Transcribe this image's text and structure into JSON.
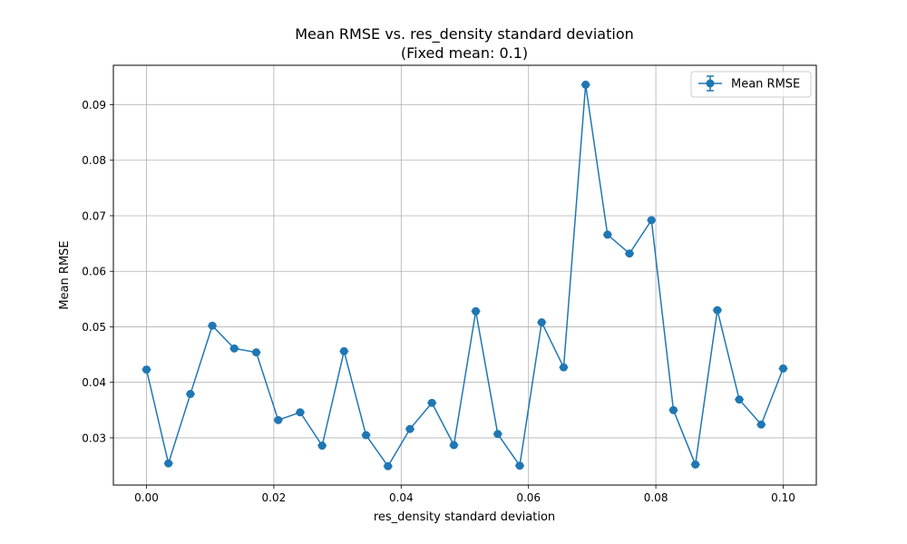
{
  "chart_data": {
    "type": "line",
    "title": "Mean RMSE vs. res_density standard deviation",
    "subtitle": "(Fixed mean: 0.1)",
    "xlabel": "res_density standard deviation",
    "ylabel": "Mean RMSE",
    "xlim": [
      -0.0052,
      0.1052
    ],
    "ylim": [
      0.0215,
      0.0971
    ],
    "x_ticks": [
      0.0,
      0.02,
      0.04,
      0.06,
      0.08,
      0.1
    ],
    "x_tick_labels": [
      "0.00",
      "0.02",
      "0.04",
      "0.06",
      "0.08",
      "0.10"
    ],
    "y_ticks": [
      0.03,
      0.04,
      0.05,
      0.06,
      0.07,
      0.08,
      0.09
    ],
    "y_tick_labels": [
      "0.03",
      "0.04",
      "0.05",
      "0.06",
      "0.07",
      "0.08",
      "0.09"
    ],
    "grid": true,
    "legend_position": "top-right",
    "color": "#1f77b4",
    "series": [
      {
        "name": "Mean RMSE",
        "marker": "circle",
        "error_bars": true,
        "x": [
          0.0,
          0.00345,
          0.0069,
          0.01034,
          0.01379,
          0.01724,
          0.02069,
          0.02414,
          0.02759,
          0.03103,
          0.03448,
          0.03793,
          0.04138,
          0.04483,
          0.04828,
          0.05172,
          0.05517,
          0.05862,
          0.06207,
          0.06552,
          0.06897,
          0.07241,
          0.07586,
          0.07931,
          0.08276,
          0.08621,
          0.08966,
          0.0931,
          0.09655,
          0.1
        ],
        "y": [
          0.0423,
          0.0254,
          0.0379,
          0.0502,
          0.0461,
          0.0454,
          0.0332,
          0.0346,
          0.0286,
          0.0456,
          0.0305,
          0.0249,
          0.0316,
          0.0363,
          0.0287,
          0.0528,
          0.0307,
          0.025,
          0.0508,
          0.0427,
          0.0936,
          0.0666,
          0.0632,
          0.0692,
          0.035,
          0.0252,
          0.053,
          0.0369,
          0.0324,
          0.0425
        ]
      }
    ]
  }
}
